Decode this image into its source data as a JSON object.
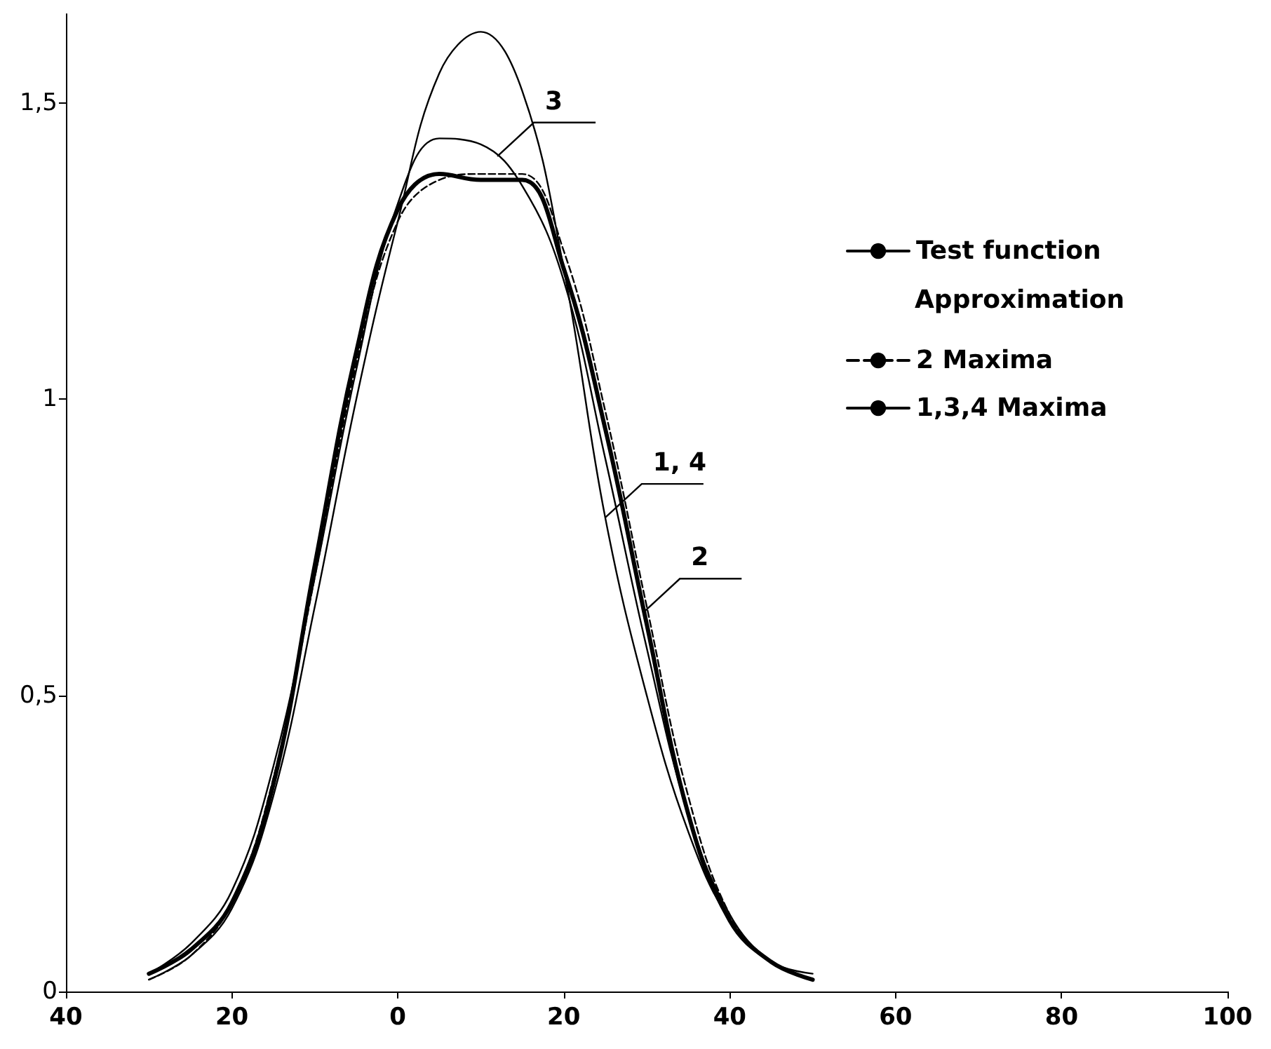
{
  "chart_data": {
    "type": "line",
    "x": [
      -30,
      -25,
      -20,
      -15,
      -10,
      -5,
      0,
      5,
      10,
      15,
      20,
      25,
      30,
      35,
      40,
      45,
      50
    ],
    "series": [
      {
        "name": "Test function",
        "color": "#000000",
        "values": [
          0.03,
          0.07,
          0.15,
          0.35,
          0.72,
          1.08,
          1.32,
          1.38,
          1.37,
          1.37,
          1.22,
          0.95,
          0.62,
          0.3,
          0.12,
          0.05,
          0.02
        ]
      },
      {
        "name": "2 Maxima",
        "color": "#000000",
        "line_style": "dashed",
        "values": [
          0.02,
          0.06,
          0.15,
          0.36,
          0.7,
          1.06,
          1.3,
          1.37,
          1.38,
          1.38,
          1.25,
          0.98,
          0.65,
          0.33,
          0.13,
          0.05,
          0.02
        ]
      },
      {
        "name": "1,3,4 Maxima",
        "color": "#000000",
        "values": [
          0.02,
          0.06,
          0.14,
          0.33,
          0.65,
          1.0,
          1.3,
          1.55,
          1.62,
          1.52,
          1.22,
          0.8,
          0.5,
          0.27,
          0.12,
          0.05,
          0.03
        ]
      },
      {
        "color": "#000000",
        "values": [
          0.03,
          0.08,
          0.17,
          0.38,
          0.7,
          1.05,
          1.33,
          1.44,
          1.43,
          1.36,
          1.2,
          0.9,
          0.58,
          0.3,
          0.13,
          0.05,
          0.02
        ]
      }
    ],
    "legend_title": "Approximation",
    "annotations": [
      {
        "text": "3",
        "x": 12,
        "y": 1.41
      },
      {
        "text": "1, 4",
        "x": 25,
        "y": 0.8
      },
      {
        "text": "2",
        "x": 29.6,
        "y": 0.64
      }
    ],
    "xlim": [
      -40,
      100
    ],
    "xticks": [
      {
        "value": -40,
        "label": "40"
      },
      {
        "value": -20,
        "label": "20"
      },
      0,
      20,
      40,
      60,
      80,
      100
    ],
    "ylim": [
      0,
      1.65
    ],
    "yticks": [
      0,
      {
        "value": 0.5,
        "label": "0,5"
      },
      1,
      {
        "value": 1.5,
        "label": "1,5"
      }
    ],
    "grid": false,
    "legend": "right",
    "marker": "none",
    "line_style": "solid"
  }
}
